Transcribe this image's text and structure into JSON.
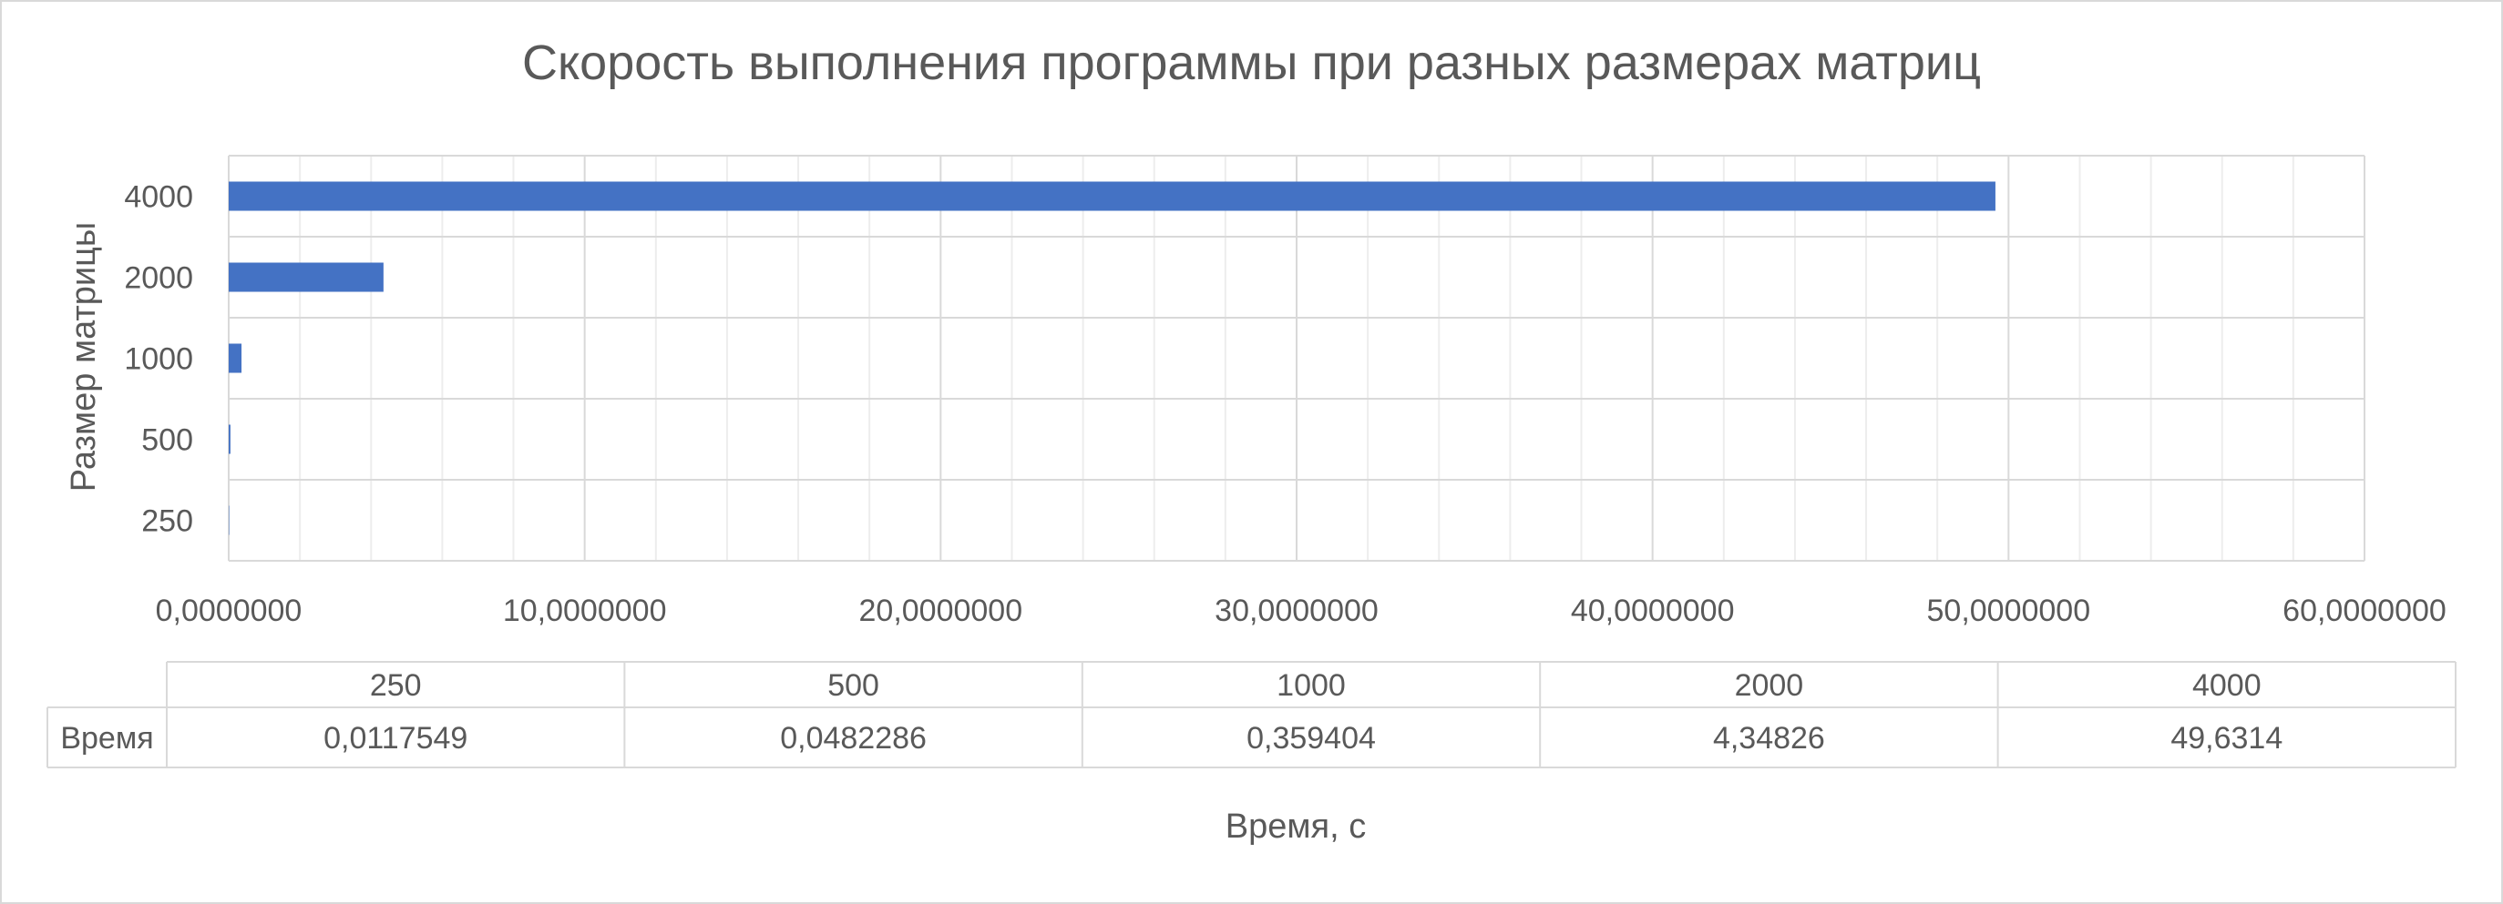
{
  "chart_data": {
    "type": "bar",
    "orientation": "horizontal",
    "title": "Скорость выполнения программы при разных размерах матриц",
    "xlabel": "Время, с",
    "ylabel": "Размер матрицы",
    "categories": [
      "250",
      "500",
      "1000",
      "2000",
      "4000"
    ],
    "series": [
      {
        "name": "Время",
        "values": [
          0.0117549,
          0.0482286,
          0.359404,
          4.34826,
          49.6314
        ]
      }
    ],
    "xlim": [
      0,
      60
    ],
    "x_ticks": [
      "0,0000000",
      "10,0000000",
      "20,0000000",
      "30,0000000",
      "40,0000000",
      "50,0000000",
      "60,0000000"
    ],
    "data_table": {
      "row_label": "Время",
      "columns": [
        "250",
        "500",
        "1000",
        "2000",
        "4000"
      ],
      "values": [
        "0,0117549",
        "0,0482286",
        "0,359404",
        "4,34826",
        "49,6314"
      ]
    },
    "grid": true,
    "bar_color": "#4472C4"
  }
}
